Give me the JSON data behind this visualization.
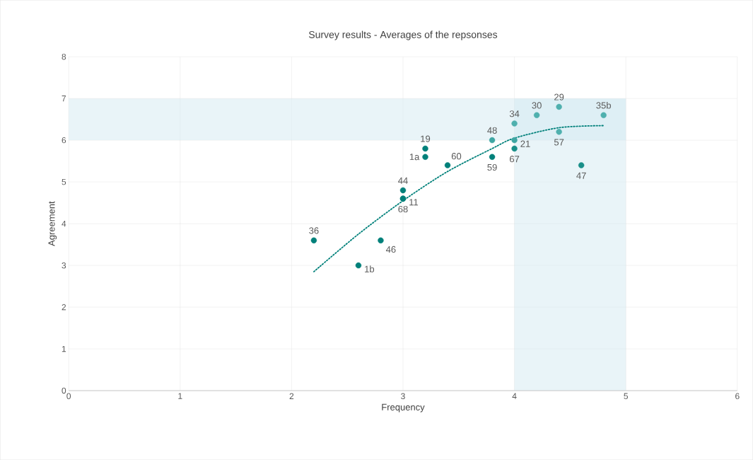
{
  "chart_data": {
    "type": "scatter",
    "title": "Survey results - Averages of the repsonses",
    "xlabel": "Frequency",
    "ylabel": "Agreement",
    "xlim": [
      0,
      6
    ],
    "ylim": [
      0,
      8
    ],
    "xticks": [
      0,
      1,
      2,
      3,
      4,
      5,
      6
    ],
    "yticks": [
      0,
      1,
      2,
      3,
      4,
      5,
      6,
      7,
      8
    ],
    "grid": true,
    "bands": [
      {
        "axis": "y",
        "from": 6,
        "to": 7,
        "color": "#d3e9f2"
      },
      {
        "axis": "x",
        "from": 4,
        "to": 5,
        "color": "#d3e9f2"
      }
    ],
    "annotations": [
      {
        "text": "36",
        "x": 2.2,
        "y": 3.6
      },
      {
        "text": "1b",
        "x": 2.6,
        "y": 3.0
      },
      {
        "text": "46",
        "x": 2.8,
        "y": 3.6
      },
      {
        "text": "44",
        "x": 3.0,
        "y": 4.8
      },
      {
        "text": "11",
        "x": 3.0,
        "y": 4.6
      },
      {
        "text": "68",
        "x": 3.0,
        "y": 4.6
      },
      {
        "text": "19",
        "x": 3.2,
        "y": 5.8
      },
      {
        "text": "1a",
        "x": 3.2,
        "y": 5.6
      },
      {
        "text": "60",
        "x": 3.4,
        "y": 5.4
      },
      {
        "text": "48",
        "x": 3.8,
        "y": 6.0
      },
      {
        "text": "59",
        "x": 3.8,
        "y": 5.6
      },
      {
        "text": "34",
        "x": 4.0,
        "y": 6.4
      },
      {
        "text": "21",
        "x": 4.0,
        "y": 6.0
      },
      {
        "text": "67",
        "x": 4.0,
        "y": 5.8
      },
      {
        "text": "30",
        "x": 4.2,
        "y": 6.6
      },
      {
        "text": "29",
        "x": 4.4,
        "y": 6.8
      },
      {
        "text": "57",
        "x": 4.4,
        "y": 6.2
      },
      {
        "text": "47",
        "x": 4.6,
        "y": 5.4
      },
      {
        "text": "35b",
        "x": 4.8,
        "y": 6.6
      }
    ],
    "series": [
      {
        "marker": "circle",
        "x": [
          2.2,
          2.6,
          2.8,
          3.0,
          3.0,
          3.0,
          3.2,
          3.2,
          3.4,
          3.8,
          3.8,
          4.0,
          4.0,
          4.0,
          4.2,
          4.4,
          4.4,
          4.6,
          4.8
        ],
        "values": [
          3.6,
          3.0,
          3.6,
          4.8,
          4.6,
          4.6,
          5.8,
          5.6,
          5.4,
          6.0,
          5.6,
          6.4,
          6.0,
          5.8,
          6.6,
          6.8,
          6.2,
          5.4,
          6.6
        ],
        "colors": [
          "#00807a",
          "#00807a",
          "#00807a",
          "#00807a",
          "#00807a",
          "#00807a",
          "#00807a",
          "#00807a",
          "#00807a",
          "#3fa6a3",
          "#00807a",
          "#4fb0ae",
          "#3fa6a3",
          "#1a8f89",
          "#4fb0ae",
          "#4fb0ae",
          "#4fb0ae",
          "#1a8f89",
          "#4fb0ae"
        ]
      },
      {
        "type": "line",
        "marker": "none",
        "line_style": "dotted",
        "color": "#00807a",
        "x": [
          2.2,
          2.6,
          3.0,
          3.4,
          3.8,
          4.0,
          4.4,
          4.8
        ],
        "values": [
          2.85,
          3.75,
          4.55,
          5.25,
          5.8,
          6.05,
          6.3,
          6.35
        ]
      }
    ]
  }
}
